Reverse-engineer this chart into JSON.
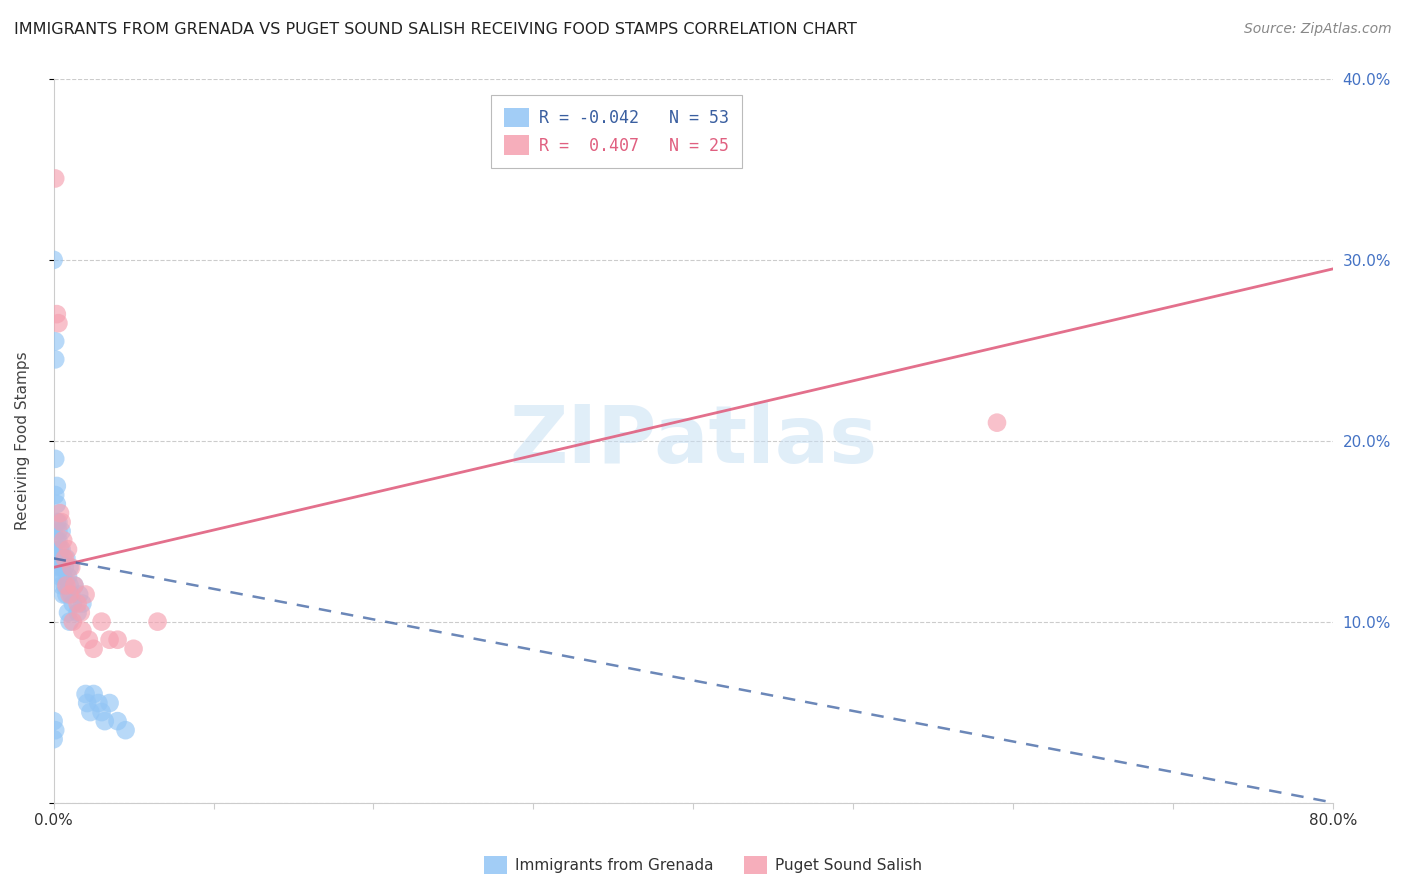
{
  "title": "IMMIGRANTS FROM GRENADA VS PUGET SOUND SALISH RECEIVING FOOD STAMPS CORRELATION CHART",
  "source": "Source: ZipAtlas.com",
  "ylabel": "Receiving Food Stamps",
  "x_min": 0.0,
  "x_max": 0.8,
  "y_min": 0.0,
  "y_max": 0.4,
  "blue_color": "#92C5F5",
  "pink_color": "#F5A0B0",
  "blue_line_color": "#3A5FA0",
  "pink_line_color": "#E06080",
  "blue_R": -0.042,
  "blue_N": 53,
  "pink_R": 0.407,
  "pink_N": 25,
  "watermark": "ZIPatlas",
  "legend_label_blue": "Immigrants from Grenada",
  "legend_label_pink": "Puget Sound Salish",
  "blue_points_x": [
    0.0,
    0.0,
    0.0,
    0.001,
    0.001,
    0.001,
    0.001,
    0.001,
    0.002,
    0.002,
    0.002,
    0.002,
    0.002,
    0.003,
    0.003,
    0.003,
    0.003,
    0.003,
    0.004,
    0.004,
    0.004,
    0.005,
    0.005,
    0.005,
    0.005,
    0.006,
    0.006,
    0.006,
    0.007,
    0.007,
    0.008,
    0.008,
    0.009,
    0.009,
    0.01,
    0.01,
    0.01,
    0.011,
    0.012,
    0.013,
    0.015,
    0.016,
    0.018,
    0.02,
    0.021,
    0.023,
    0.025,
    0.028,
    0.03,
    0.032,
    0.035,
    0.04,
    0.045
  ],
  "blue_points_y": [
    0.3,
    0.045,
    0.035,
    0.255,
    0.245,
    0.19,
    0.17,
    0.04,
    0.175,
    0.165,
    0.155,
    0.145,
    0.135,
    0.155,
    0.15,
    0.145,
    0.135,
    0.13,
    0.14,
    0.135,
    0.125,
    0.15,
    0.14,
    0.13,
    0.12,
    0.135,
    0.125,
    0.115,
    0.13,
    0.12,
    0.135,
    0.115,
    0.125,
    0.105,
    0.13,
    0.12,
    0.1,
    0.115,
    0.11,
    0.12,
    0.105,
    0.115,
    0.11,
    0.06,
    0.055,
    0.05,
    0.06,
    0.055,
    0.05,
    0.045,
    0.055,
    0.045,
    0.04
  ],
  "pink_points_x": [
    0.002,
    0.003,
    0.004,
    0.005,
    0.006,
    0.007,
    0.008,
    0.009,
    0.01,
    0.011,
    0.012,
    0.013,
    0.015,
    0.017,
    0.018,
    0.02,
    0.022,
    0.025,
    0.03,
    0.035,
    0.04,
    0.05,
    0.065,
    0.59,
    0.001
  ],
  "pink_points_y": [
    0.27,
    0.265,
    0.16,
    0.155,
    0.145,
    0.135,
    0.12,
    0.14,
    0.115,
    0.13,
    0.1,
    0.12,
    0.11,
    0.105,
    0.095,
    0.115,
    0.09,
    0.085,
    0.1,
    0.09,
    0.09,
    0.085,
    0.1,
    0.21,
    0.345
  ],
  "pink_line_x0": 0.0,
  "pink_line_y0": 0.13,
  "pink_line_x1": 0.8,
  "pink_line_y1": 0.295,
  "blue_line_x0": 0.0,
  "blue_line_y0": 0.135,
  "blue_line_x1": 0.8,
  "blue_line_y1": 0.0,
  "background_color": "#ffffff",
  "grid_color": "#cccccc"
}
